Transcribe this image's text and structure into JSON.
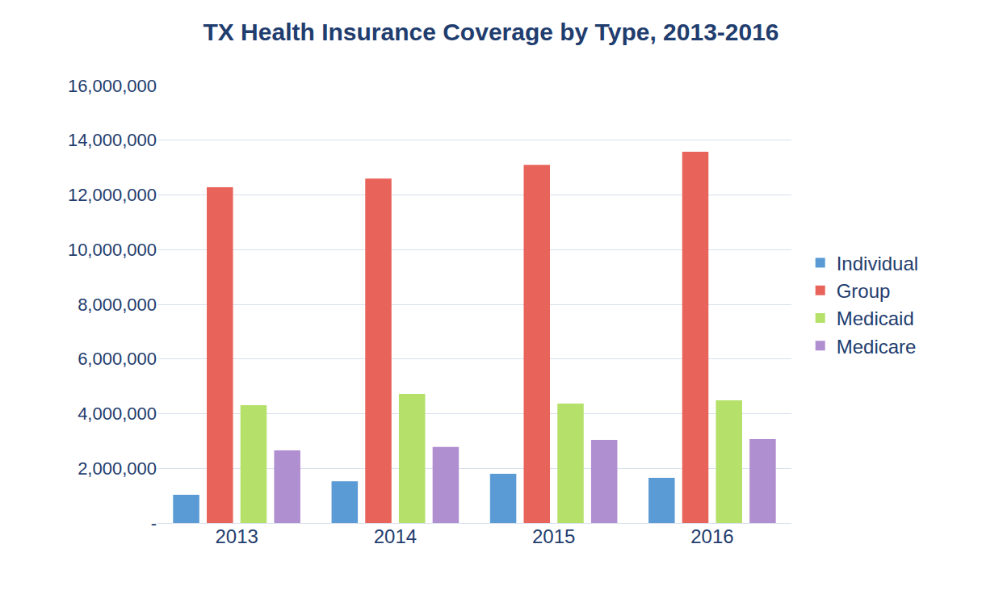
{
  "chart_data": {
    "type": "bar",
    "title": "TX Health Insurance Coverage by Type, 2013-2016",
    "categories": [
      "2013",
      "2014",
      "2015",
      "2016"
    ],
    "series": [
      {
        "name": "Individual",
        "color": "#5b9bd5",
        "values": [
          1030000,
          1530000,
          1800000,
          1650000
        ]
      },
      {
        "name": "Group",
        "color": "#e8635a",
        "values": [
          12280000,
          12600000,
          13100000,
          13580000
        ]
      },
      {
        "name": "Medicaid",
        "color": "#b5e06a",
        "values": [
          4310000,
          4720000,
          4370000,
          4490000
        ]
      },
      {
        "name": "Medicare",
        "color": "#b08fd0",
        "values": [
          2660000,
          2780000,
          3040000,
          3070000
        ]
      }
    ],
    "ylim": [
      0,
      16000000
    ],
    "yticks": [
      {
        "value": 0,
        "label": "-"
      },
      {
        "value": 2000000,
        "label": "2,000,000"
      },
      {
        "value": 4000000,
        "label": "4,000,000"
      },
      {
        "value": 6000000,
        "label": "6,000,000"
      },
      {
        "value": 8000000,
        "label": "8,000,000"
      },
      {
        "value": 10000000,
        "label": "10,000,000"
      },
      {
        "value": 12000000,
        "label": "12,000,000"
      },
      {
        "value": 14000000,
        "label": "14,000,000"
      },
      {
        "value": 16000000,
        "label": "16,000,000"
      }
    ],
    "grid": true,
    "legend": "right"
  }
}
